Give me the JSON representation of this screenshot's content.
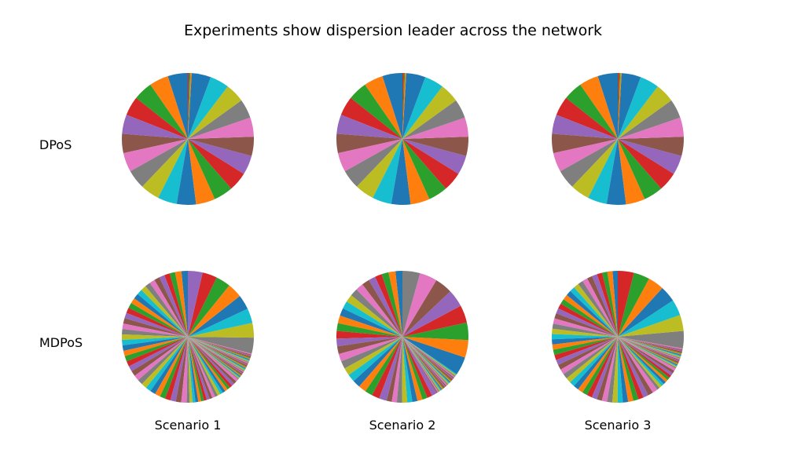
{
  "figure": {
    "title": "Experiments show dispersion leader across the network",
    "row_labels": [
      "DPoS",
      "MDPoS"
    ],
    "column_labels": [
      "Scenario 1",
      "Scenario 2",
      "Scenario 3"
    ]
  },
  "palette": [
    "#1f77b4",
    "#ff7f0e",
    "#2ca02c",
    "#d62728",
    "#9467bd",
    "#8c564b",
    "#e377c2",
    "#7f7f7f",
    "#bcbd22",
    "#17becf"
  ],
  "chart_data": [
    {
      "type": "pie",
      "row": "DPoS",
      "column": "Scenario 1",
      "start_angle_deg": 90,
      "direction": "counterclockwise",
      "values": [
        4.8,
        4.6,
        4.6,
        4.6,
        4.6,
        4.6,
        4.6,
        4.6,
        4.6,
        4.6,
        4.6,
        4.6,
        4.6,
        4.6,
        4.6,
        4.6,
        4.6,
        4.6,
        4.6,
        4.6,
        4.6,
        0.3,
        0.3,
        0.3
      ]
    },
    {
      "type": "pie",
      "row": "DPoS",
      "column": "Scenario 2",
      "start_angle_deg": 90,
      "direction": "counterclockwise",
      "values": [
        4.8,
        4.6,
        4.6,
        4.6,
        4.6,
        4.6,
        4.6,
        4.6,
        4.6,
        4.6,
        4.6,
        4.6,
        4.6,
        4.6,
        4.6,
        4.6,
        4.6,
        4.6,
        4.6,
        4.6,
        4.6,
        0.3,
        0.3,
        0.3
      ]
    },
    {
      "type": "pie",
      "row": "DPoS",
      "column": "Scenario 3",
      "start_angle_deg": 90,
      "direction": "counterclockwise",
      "values": [
        4.8,
        4.6,
        4.6,
        4.6,
        4.6,
        4.6,
        4.6,
        4.6,
        4.6,
        4.6,
        4.6,
        4.6,
        4.6,
        4.6,
        4.6,
        4.6,
        4.6,
        4.6,
        4.6,
        4.6,
        4.6,
        0.3,
        0.3,
        0.3
      ]
    },
    {
      "type": "pie",
      "row": "MDPoS",
      "column": "Scenario 1",
      "start_angle_deg": 90,
      "direction": "counterclockwise",
      "values": [
        2.0,
        2.0,
        1.7,
        1.7,
        1.7,
        1.7,
        1.7,
        1.7,
        1.7,
        1.7,
        1.7,
        1.7,
        1.7,
        1.7,
        1.7,
        1.7,
        1.7,
        1.7,
        1.7,
        1.7,
        1.7,
        1.7,
        1.7,
        1.7,
        1.7,
        1.7,
        1.7,
        1.7,
        1.7,
        1.7,
        1.7,
        1.7,
        1.7,
        1.7,
        1.7,
        1.7,
        1.7,
        0.9,
        0.9,
        0.9,
        0.9,
        0.9,
        0.9,
        0.9,
        0.9,
        0.9,
        0.9,
        0.9,
        0.9,
        0.9,
        0.9,
        0.9,
        0.9,
        0.9,
        0.9,
        0.9,
        0.9,
        0.3,
        0.3,
        0.3,
        0.3,
        0.3,
        0.3,
        0.3,
        0.3,
        0.3,
        0.3,
        0.3,
        0.3,
        0.3,
        0.3,
        0.3,
        0.3,
        0.3,
        0.3,
        0.3,
        0.3,
        0.3,
        0.3,
        0.3,
        0.3,
        0.3,
        0.3,
        0.3,
        0.3,
        0.3,
        0.3,
        5.0,
        4.6,
        4.6,
        4.6,
        4.6,
        4.6,
        4.6,
        4.6
      ]
    },
    {
      "type": "pie",
      "row": "MDPoS",
      "column": "Scenario 2",
      "start_angle_deg": 90,
      "direction": "counterclockwise",
      "values": [
        1.9,
        1.9,
        1.9,
        1.9,
        1.9,
        2.1,
        2.1,
        2.1,
        2.1,
        2.1,
        2.1,
        2.1,
        2.1,
        2.1,
        2.1,
        2.1,
        2.1,
        2.1,
        2.1,
        2.1,
        2.1,
        2.1,
        2.1,
        2.1,
        2.1,
        1.4,
        1.4,
        1.4,
        1.4,
        1.4,
        1.4,
        1.4,
        1.4,
        1.4,
        1.4,
        0.3,
        0.3,
        0.3,
        0.3,
        0.3,
        0.3,
        0.3,
        0.3,
        0.3,
        0.3,
        0.3,
        0.3,
        0.3,
        0.3,
        0.3,
        0.3,
        0.3,
        0.3,
        0.3,
        0.3,
        0.3,
        0.3,
        0.3,
        0.3,
        0.3,
        5.0,
        4.8,
        4.8,
        4.8,
        4.8,
        4.8,
        4.8,
        4.8
      ]
    },
    {
      "type": "pie",
      "row": "MDPoS",
      "column": "Scenario 3",
      "start_angle_deg": 90,
      "direction": "counterclockwise",
      "values": [
        1.5,
        1.5,
        1.5,
        1.5,
        1.5,
        1.5,
        1.5,
        1.5,
        1.5,
        1.5,
        1.5,
        1.5,
        1.5,
        1.5,
        1.5,
        1.5,
        1.5,
        1.5,
        1.5,
        1.5,
        1.5,
        1.5,
        1.5,
        1.5,
        1.5,
        1.5,
        1.5,
        1.5,
        1.5,
        1.5,
        1.5,
        1.5,
        1.5,
        1.5,
        1.5,
        1.5,
        1.5,
        1.5,
        1.5,
        1.5,
        1.5,
        1.5,
        1.5,
        1.5,
        1.5,
        1.5,
        1.5,
        0.8,
        0.8,
        0.8,
        0.8,
        0.8,
        0.8,
        0.8,
        0.8,
        0.8,
        0.8,
        0.3,
        0.3,
        0.3,
        0.3,
        0.3,
        0.3,
        0.3,
        0.3,
        0.3,
        0.3,
        0.3,
        0.3,
        0.3,
        0.3,
        0.3,
        0.3,
        0.3,
        0.3,
        0.3,
        0.3,
        5.0,
        4.6,
        4.6,
        4.6,
        4.6,
        4.6,
        4.6
      ]
    }
  ]
}
